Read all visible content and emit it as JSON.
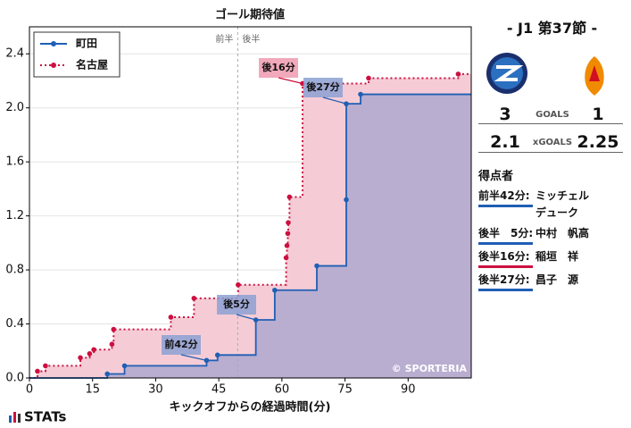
{
  "chart_data": {
    "type": "step",
    "title": "ゴール期待値",
    "xlabel": "キックオフからの経過時間(分)",
    "xlim": [
      0,
      105
    ],
    "ylim": [
      0,
      2.6
    ],
    "xticks": [
      0,
      15,
      30,
      45,
      60,
      75,
      90
    ],
    "yticks": [
      {
        "value": 0,
        "label": "0.0"
      },
      0.4,
      0.8,
      1.2,
      1.6,
      {
        "value": 2,
        "label": "2.0"
      },
      2.4
    ],
    "grid": true,
    "legend": "upper left",
    "halftime": 49.5,
    "half_labels": [
      "前半",
      "後半"
    ],
    "series": [
      {
        "name": "町田",
        "color": "#1f5fb4",
        "line": "solid",
        "x": [
          18.5,
          22.6,
          42.1,
          44.7,
          53.8,
          58.3,
          68.3,
          75.3,
          75.3,
          78.7
        ],
        "values": [
          0.03,
          0.09,
          0.13,
          0.17,
          0.43,
          0.65,
          0.83,
          1.32,
          2.03,
          2.1
        ]
      },
      {
        "name": "名古屋",
        "color": "#cc1040",
        "line": "dotted",
        "x": [
          1.9,
          3.8,
          12.1,
          14.3,
          15.3,
          19.6,
          20,
          33.6,
          39.1,
          49.6,
          61,
          61.2,
          61.4,
          61.5,
          61.8,
          64.9,
          80.6,
          101.9
        ],
        "values": [
          0.05,
          0.09,
          0.15,
          0.18,
          0.21,
          0.25,
          0.36,
          0.45,
          0.59,
          0.69,
          0.89,
          0.98,
          1.07,
          1.15,
          1.34,
          2.18,
          2.22,
          2.25
        ]
      }
    ],
    "annotations": [
      "前42分",
      "後5分",
      "後16分",
      "後27分"
    ],
    "watermark": "© SPORTERIA"
  },
  "match": {
    "title": "- J1 第37節 -",
    "home_goals": 3,
    "goals_label": "GOALS",
    "away_goals": 1,
    "home_xg": 2.1,
    "xg_label": "xGOALS",
    "away_xg": 2.25
  },
  "scorers_title": "得点者",
  "scorers": [
    {
      "time": "前半42分:",
      "player": "ミッチェル デューク",
      "color": "#1f5fb4"
    },
    {
      "time": "後半　5分:",
      "player": "中村　帆高",
      "color": "#1f5fb4"
    },
    {
      "time": "後半16分:",
      "player": "稲垣　祥",
      "color": "#cc1040"
    },
    {
      "time": "後半27分:",
      "player": "昌子　源",
      "color": "#1f5fb4"
    }
  ],
  "brand": "STATs"
}
